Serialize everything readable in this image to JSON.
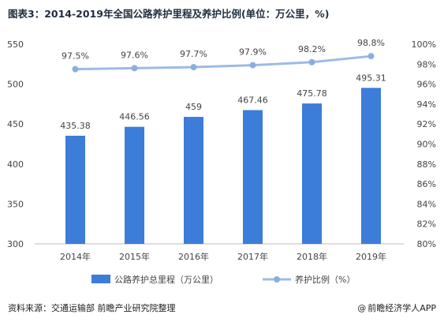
{
  "title": "图表3：2014-2019年全国公路养护里程及养护比例(单位：万公里，%)",
  "source_text": "资料来源：交通运输部 前瞻产业研究院整理",
  "brand_text": "前瞻经济学人APP",
  "colors": {
    "bar": "#3b7dd8",
    "line": "#9dbbe4",
    "marker": "#8aaedf",
    "axis": "#bbbbbb"
  },
  "chart_data": {
    "type": "bar",
    "categories": [
      "2014年",
      "2015年",
      "2016年",
      "2017年",
      "2018年",
      "2019年"
    ],
    "series": [
      {
        "name": "公路养护总里程（万公里）",
        "type": "bar",
        "axis": "left",
        "values": [
          435.38,
          446.56,
          459,
          467.46,
          475.78,
          495.31
        ],
        "labels": [
          "435.38",
          "446.56",
          "459",
          "467.46",
          "475.78",
          "495.31"
        ]
      },
      {
        "name": "养护比例（%）",
        "type": "line",
        "axis": "right",
        "values": [
          97.5,
          97.6,
          97.7,
          97.9,
          98.2,
          98.8
        ],
        "labels": [
          "97.5%",
          "97.6%",
          "97.7%",
          "97.9%",
          "98.2%",
          "98.8%"
        ]
      }
    ],
    "y_left": {
      "range": [
        300,
        550
      ],
      "ticks": [
        "300",
        "350",
        "400",
        "450",
        "500",
        "550"
      ]
    },
    "y_right": {
      "range": [
        80,
        100
      ],
      "ticks": [
        "80%",
        "82%",
        "84%",
        "86%",
        "88%",
        "90%",
        "92%",
        "94%",
        "96%",
        "98%",
        "100%"
      ]
    },
    "grid": false,
    "legend": "bottom"
  }
}
